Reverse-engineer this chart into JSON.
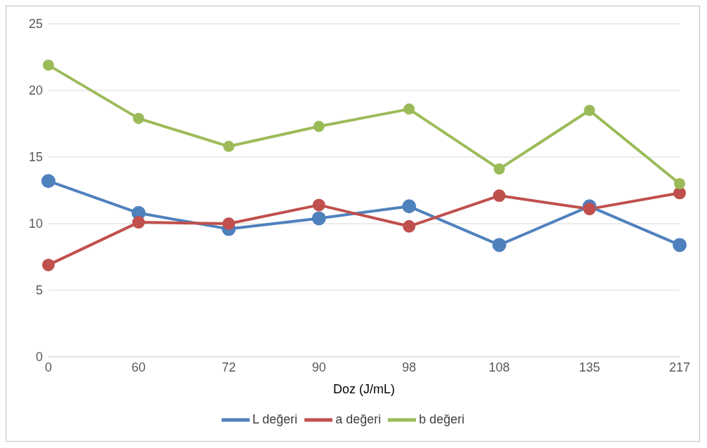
{
  "chart_data": {
    "type": "line",
    "xlabel": "Doz (J/mL)",
    "categories": [
      "0",
      "60",
      "72",
      "90",
      "98",
      "108",
      "135",
      "217"
    ],
    "series": [
      {
        "name": "L değeri",
        "color": "#4f81bd",
        "values": [
          13.2,
          10.8,
          9.6,
          10.4,
          11.3,
          8.4,
          11.3,
          8.4
        ]
      },
      {
        "name": "a değeri",
        "color": "#c0504d",
        "values": [
          6.9,
          10.1,
          10.0,
          11.4,
          9.8,
          12.1,
          11.1,
          12.3
        ]
      },
      {
        "name": "b değeri",
        "color": "#9bbb59",
        "values": [
          21.9,
          17.9,
          15.8,
          17.3,
          18.6,
          14.1,
          18.5,
          13.0
        ]
      }
    ],
    "ylim": [
      0,
      25
    ],
    "yticks": [
      0,
      5,
      10,
      15,
      20,
      25
    ],
    "grid": "y",
    "legend": "bottom",
    "marker": "circle",
    "line_style": "solid"
  }
}
